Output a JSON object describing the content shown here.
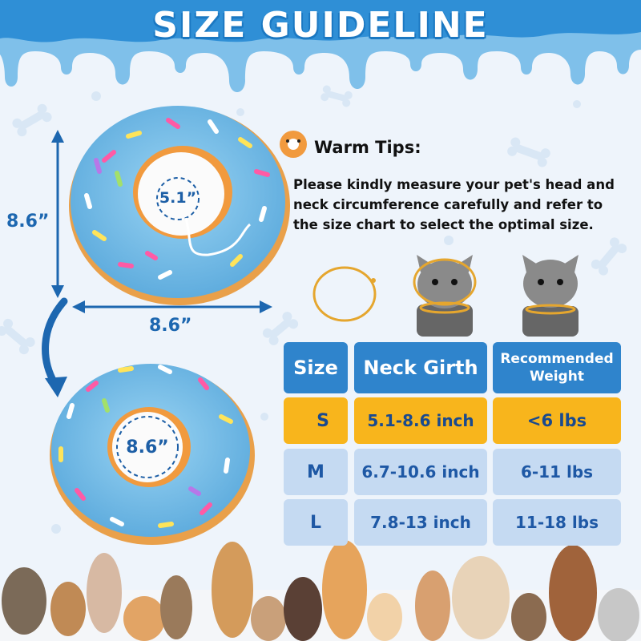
{
  "title": "SIZE GUIDELINE",
  "dimensions": {
    "height_label": "8.6”",
    "width_label": "8.6”",
    "inner_top": "5.1”",
    "inner_bottom": "8.6”"
  },
  "warm_tips": {
    "title": "Warm Tips:",
    "body": "Please kindly measure your pet's head and neck circumference carefully and refer to the size chart to select the optimal size."
  },
  "colors": {
    "header_blue": "#2f84cc",
    "highlight_orange": "#f8b51c",
    "row_blue": "#c5daf2",
    "text_blue": "#1e58a5",
    "donut_blue": "#7cc3ea"
  },
  "table": {
    "headers": [
      "Size",
      "Neck Girth",
      "Recommended Weight"
    ],
    "rows": [
      {
        "size": "S",
        "girth": "5.1-8.6 inch",
        "weight": "<6 lbs",
        "highlighted": true
      },
      {
        "size": "M",
        "girth": "6.7-10.6 inch",
        "weight": "6-11 lbs",
        "highlighted": false
      },
      {
        "size": "L",
        "girth": "7.8-13 inch",
        "weight": "11-18 lbs",
        "highlighted": false
      }
    ]
  }
}
